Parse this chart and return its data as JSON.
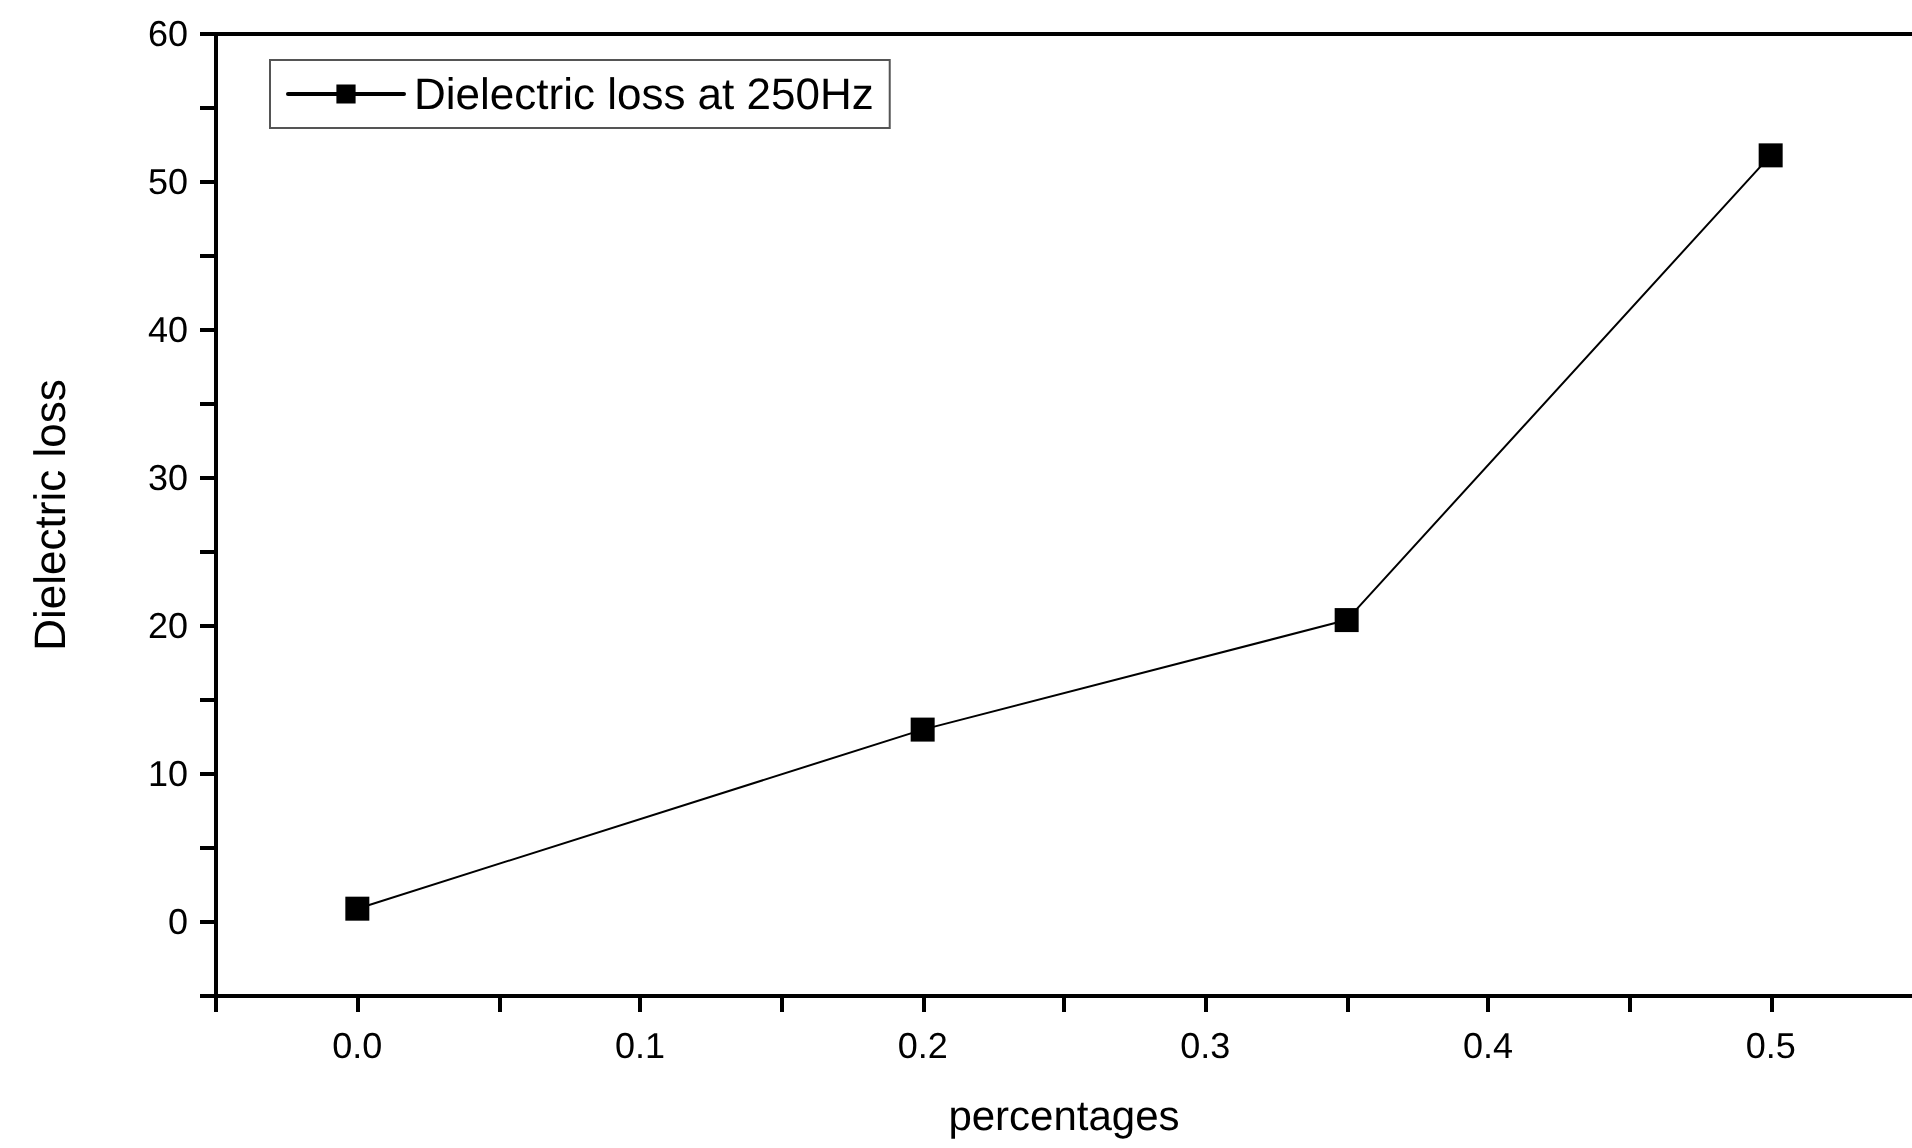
{
  "chart_data": {
    "type": "line",
    "xlabel": "percentages",
    "ylabel": "Dielectric loss",
    "x": [
      0.0,
      0.2,
      0.35,
      0.5
    ],
    "series": [
      {
        "name": "Dielectric loss at 250Hz",
        "color": "#000000",
        "values": [
          0.9,
          13.0,
          20.4,
          51.8
        ]
      }
    ],
    "xlim": [
      -0.05,
      0.55
    ],
    "xticks": [
      {
        "value": -0.05,
        "label": null
      },
      {
        "value": 0,
        "label": "0.0"
      },
      {
        "value": 0.05,
        "label": null
      },
      {
        "value": 0.1,
        "label": "0.1"
      },
      {
        "value": 0.15,
        "label": null
      },
      {
        "value": 0.2,
        "label": "0.2"
      },
      {
        "value": 0.25,
        "label": null
      },
      {
        "value": 0.3,
        "label": "0.3"
      },
      {
        "value": 0.35,
        "label": null
      },
      {
        "value": 0.4,
        "label": "0.4"
      },
      {
        "value": 0.45,
        "label": null
      },
      {
        "value": 0.5,
        "label": "0.5"
      }
    ],
    "ylim": [
      -5,
      60
    ],
    "yticks": [
      {
        "value": -5,
        "label": null
      },
      0,
      {
        "value": 5,
        "label": null
      },
      10,
      {
        "value": 15,
        "label": null
      },
      20,
      {
        "value": 25,
        "label": null
      },
      30,
      {
        "value": 35,
        "label": null
      },
      40,
      {
        "value": 45,
        "label": null
      },
      50,
      {
        "value": 55,
        "label": null
      },
      60
    ],
    "grid": false,
    "legend": "top left",
    "marker": "square",
    "line_style": "solid"
  }
}
